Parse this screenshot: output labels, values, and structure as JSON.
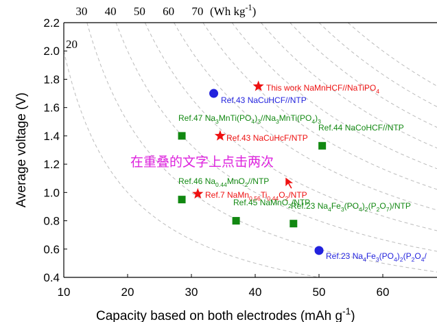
{
  "chart_data": {
    "type": "scatter",
    "x_label": [
      "Capacity based on both electrodes (mAh g",
      "-1",
      ")"
    ],
    "y_label": "Average voltage (V)",
    "xlim": [
      10,
      68.5
    ],
    "xticks": [
      10,
      20,
      30,
      40,
      50,
      60
    ],
    "ylim": [
      0.4,
      2.2
    ],
    "yticks": [
      0.4,
      0.6,
      0.8,
      {
        "value": 1.0,
        "label": "1.0"
      },
      1.2,
      1.4,
      1.6,
      1.8,
      {
        "value": 2.0,
        "label": "2.0"
      },
      2.2
    ],
    "energy_curves": [
      20,
      30,
      40,
      50,
      60,
      70
    ],
    "energy_unit": [
      "(Wh kg",
      "-1",
      ")"
    ],
    "extra_curves": [
      80,
      90,
      100,
      110,
      120
    ],
    "series": [
      {
        "marker": "circle",
        "color": "#2222dd",
        "x": [
          33.5,
          50
        ],
        "values": [
          1.7,
          0.59
        ]
      },
      {
        "marker": "star",
        "color": "#ee1111",
        "x": [
          40.5,
          34.5,
          31
        ],
        "values": [
          1.75,
          1.4,
          0.99
        ]
      },
      {
        "marker": "square",
        "color": "#118811",
        "x": [
          28.5,
          50.5,
          28.5,
          37,
          46
        ],
        "values": [
          1.4,
          1.33,
          0.95,
          0.8,
          0.78
        ]
      }
    ],
    "annotations": [
      {
        "color": "#ee1111",
        "parts": [
          "This work NaMnHCF//NaTiPO",
          "4"
        ]
      },
      {
        "color": "#2222dd",
        "parts": [
          "Ref.43 NaCuHCF//NTP"
        ]
      },
      {
        "color": "#118811",
        "parts": [
          "Ref.47 Na",
          "3",
          "MnTi(PO",
          "4",
          ")",
          "3",
          "//Na",
          "3",
          "MnTi(PO",
          "4",
          ")",
          "3"
        ]
      },
      {
        "color": "#118811",
        "parts": [
          "Ref.44 NaCoHCF//NTP"
        ]
      },
      {
        "color": "#ee1111",
        "parts": [
          "Ref.43 NaCuHcF/NTP"
        ]
      },
      {
        "color": "#118811",
        "parts": [
          "Ref.46 Na",
          "0.44",
          "MnO",
          "2",
          "//NTP"
        ]
      },
      {
        "color": "#ee1111",
        "parts": [
          "Ref.7 NaMn",
          "0.56",
          "Ti",
          "0.44",
          "O",
          "2",
          "/NTP"
        ]
      },
      {
        "color": "#118811",
        "parts": [
          "Ref.45 NaMnO",
          "2",
          "/NTP"
        ]
      },
      {
        "color": "#118811",
        "parts": [
          "Ref.23 Na",
          "4",
          "Fe",
          "3",
          "(PO",
          "4",
          ")",
          "2",
          "(P",
          "2",
          "O",
          "7",
          ")/NTP"
        ]
      },
      {
        "color": "#2222dd",
        "parts": [
          "Ref.23 Na",
          "4",
          "Fe",
          "3",
          "(PO",
          "4",
          ")",
          "2",
          "(P",
          "2",
          "O",
          "4",
          "/"
        ]
      }
    ],
    "overlay_text": "在重叠的文字上点击两次"
  }
}
